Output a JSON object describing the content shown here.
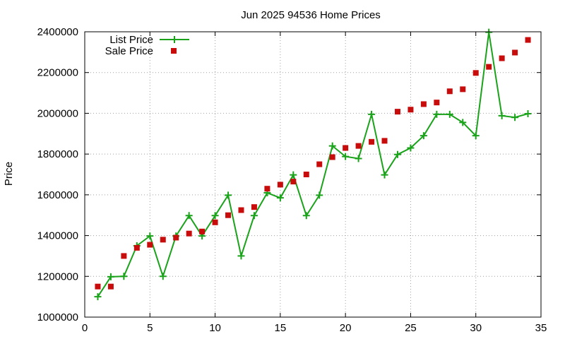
{
  "chart_data": {
    "type": "line",
    "title": "Jun 2025 94536 Home Prices",
    "xlabel": "",
    "ylabel": "Price",
    "xlim": [
      0,
      35
    ],
    "ylim": [
      1000000,
      2400000
    ],
    "x_ticks": [
      0,
      5,
      10,
      15,
      20,
      25,
      30,
      35
    ],
    "y_ticks": [
      1000000,
      1200000,
      1400000,
      1600000,
      1800000,
      2000000,
      2200000,
      2400000
    ],
    "grid": true,
    "legend_position": "top-left",
    "series": [
      {
        "name": "List Price",
        "style": "line-with-plus-markers",
        "color": "#1aa31a",
        "points": [
          [
            1,
            1100000
          ],
          [
            2,
            1198000
          ],
          [
            3,
            1200000
          ],
          [
            4,
            1350000
          ],
          [
            5,
            1398000
          ],
          [
            6,
            1200000
          ],
          [
            7,
            1398000
          ],
          [
            8,
            1498000
          ],
          [
            9,
            1398000
          ],
          [
            10,
            1498000
          ],
          [
            11,
            1598000
          ],
          [
            12,
            1300000
          ],
          [
            13,
            1498000
          ],
          [
            14,
            1610000
          ],
          [
            15,
            1585000
          ],
          [
            16,
            1698000
          ],
          [
            17,
            1498000
          ],
          [
            18,
            1598000
          ],
          [
            19,
            1840000
          ],
          [
            20,
            1788000
          ],
          [
            21,
            1778000
          ],
          [
            22,
            1995000
          ],
          [
            23,
            1698000
          ],
          [
            24,
            1798000
          ],
          [
            25,
            1830000
          ],
          [
            26,
            1890000
          ],
          [
            27,
            1995000
          ],
          [
            28,
            1995000
          ],
          [
            29,
            1955000
          ],
          [
            30,
            1890000
          ],
          [
            31,
            2398000
          ],
          [
            32,
            1988000
          ],
          [
            33,
            1980000
          ],
          [
            34,
            1998000
          ]
        ]
      },
      {
        "name": "Sale Price",
        "style": "square-markers",
        "color": "#c80c0c",
        "points": [
          [
            1,
            1150000
          ],
          [
            2,
            1150000
          ],
          [
            3,
            1300000
          ],
          [
            4,
            1340000
          ],
          [
            5,
            1355000
          ],
          [
            6,
            1380000
          ],
          [
            7,
            1390000
          ],
          [
            8,
            1410000
          ],
          [
            9,
            1420000
          ],
          [
            10,
            1465000
          ],
          [
            11,
            1500000
          ],
          [
            12,
            1525000
          ],
          [
            13,
            1540000
          ],
          [
            14,
            1630000
          ],
          [
            15,
            1650000
          ],
          [
            16,
            1665000
          ],
          [
            17,
            1700000
          ],
          [
            18,
            1750000
          ],
          [
            19,
            1785000
          ],
          [
            20,
            1830000
          ],
          [
            21,
            1840000
          ],
          [
            22,
            1860000
          ],
          [
            23,
            1865000
          ],
          [
            24,
            2008000
          ],
          [
            25,
            2018000
          ],
          [
            26,
            2045000
          ],
          [
            27,
            2053000
          ],
          [
            28,
            2108000
          ],
          [
            29,
            2118000
          ],
          [
            30,
            2198000
          ],
          [
            31,
            2228000
          ],
          [
            32,
            2270000
          ],
          [
            33,
            2298000
          ],
          [
            34,
            2360000
          ]
        ]
      }
    ]
  }
}
